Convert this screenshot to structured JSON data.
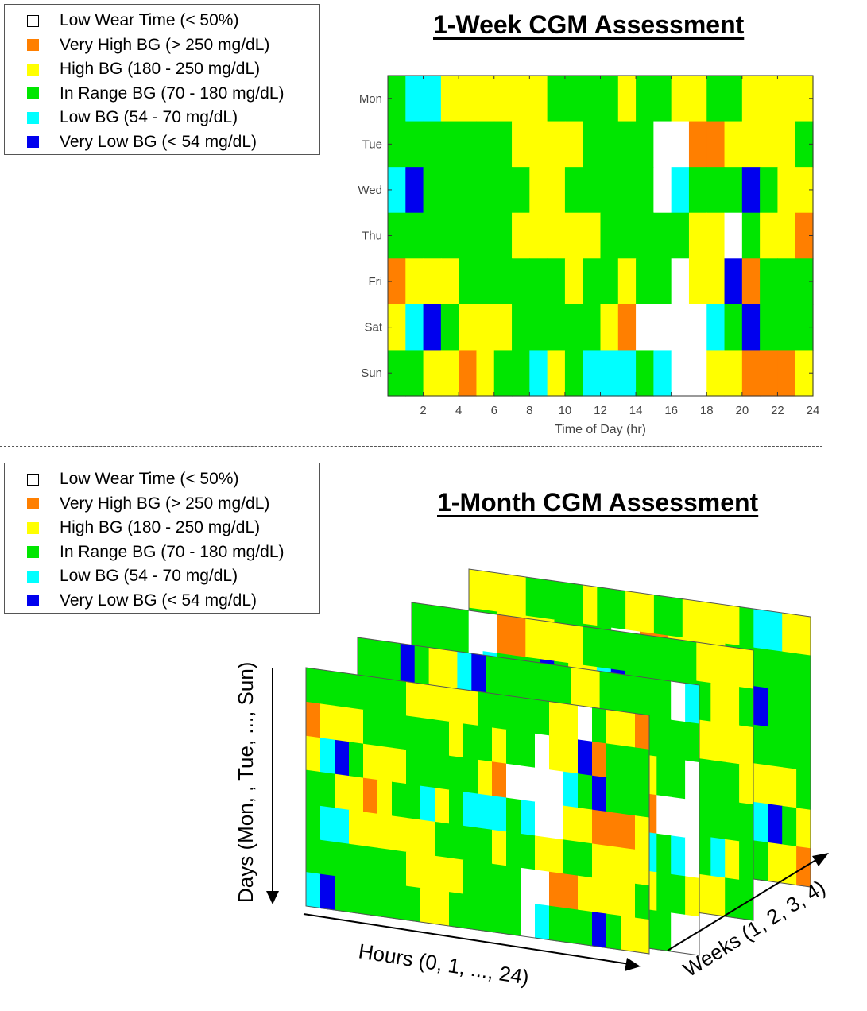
{
  "legend": {
    "items": [
      {
        "label": "Low Wear Time (< 50%)",
        "color": "#ffffff",
        "outline": true
      },
      {
        "label": "Very High BG (> 250 mg/dL)",
        "color": "#ff7f00"
      },
      {
        "label": "High BG (180 - 250 mg/dL)",
        "color": "#ffff00"
      },
      {
        "label": "In Range BG (70 - 180 mg/dL)",
        "color": "#00e600"
      },
      {
        "label": "Low BG (54 - 70 mg/dL)",
        "color": "#00ffff"
      },
      {
        "label": "Very Low BG (< 54 mg/dL)",
        "color": "#0000ee"
      }
    ]
  },
  "week_title": "1-Week CGM Assessment",
  "month_title": "1-Month CGM Assessment",
  "month_axes": {
    "days_label": "Days (Mon, , Tue, ..., Sun)",
    "hours_label": "Hours (0, 1, ..., 24)",
    "weeks_label": "Weeks (1, 2, 3, 4)"
  },
  "chart_data": [
    {
      "type": "heatmap",
      "title": "1-Week CGM Assessment",
      "xlabel": "Time of Day (hr)",
      "ylabel": "",
      "xlim": [
        0,
        24
      ],
      "x_ticks": [
        "2",
        "4",
        "6",
        "8",
        "10",
        "12",
        "14",
        "16",
        "18",
        "20",
        "22",
        "24"
      ],
      "y_categories": [
        "Mon",
        "Tue",
        "Wed",
        "Thu",
        "Fri",
        "Sat",
        "Sun"
      ],
      "value_key": {
        "0": "Low Wear Time (< 50%)",
        "1": "Very High BG (> 250 mg/dL)",
        "2": "High BG (180 - 250 mg/dL)",
        "3": "In Range BG (70 - 180 mg/dL)",
        "4": "Low BG (54 - 70 mg/dL)",
        "5": "Very Low BG (< 54 mg/dL)"
      },
      "values": [
        [
          3,
          4,
          4,
          2,
          2,
          2,
          2,
          2,
          2,
          3,
          3,
          3,
          3,
          2,
          3,
          3,
          2,
          2,
          3,
          3,
          2,
          2,
          2,
          2
        ],
        [
          3,
          3,
          3,
          3,
          3,
          3,
          3,
          2,
          2,
          2,
          2,
          3,
          3,
          3,
          3,
          0,
          0,
          1,
          1,
          2,
          2,
          2,
          2,
          3
        ],
        [
          4,
          5,
          3,
          3,
          3,
          3,
          3,
          3,
          2,
          2,
          3,
          3,
          3,
          3,
          3,
          0,
          4,
          3,
          3,
          3,
          5,
          3,
          2,
          2
        ],
        [
          3,
          3,
          3,
          3,
          3,
          3,
          3,
          2,
          2,
          2,
          2,
          2,
          3,
          3,
          3,
          3,
          3,
          2,
          2,
          0,
          3,
          2,
          2,
          1
        ],
        [
          1,
          2,
          2,
          2,
          3,
          3,
          3,
          3,
          3,
          3,
          2,
          3,
          3,
          2,
          3,
          3,
          0,
          2,
          2,
          5,
          1,
          3,
          3,
          3
        ],
        [
          2,
          4,
          5,
          3,
          2,
          2,
          2,
          3,
          3,
          3,
          3,
          3,
          2,
          1,
          0,
          0,
          0,
          0,
          4,
          3,
          5,
          3,
          3,
          3
        ],
        [
          3,
          3,
          2,
          2,
          1,
          2,
          3,
          3,
          4,
          2,
          3,
          4,
          4,
          4,
          3,
          4,
          0,
          0,
          2,
          2,
          1,
          1,
          1,
          2
        ]
      ]
    }
  ]
}
